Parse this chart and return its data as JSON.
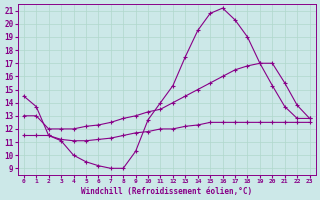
{
  "xlabel": "Windchill (Refroidissement éolien,°C)",
  "background_color": "#cce8e8",
  "grid_color": "#b0d8cc",
  "line_color": "#880088",
  "x_ticks": [
    0,
    1,
    2,
    3,
    4,
    5,
    6,
    7,
    8,
    9,
    10,
    11,
    12,
    13,
    14,
    15,
    16,
    17,
    18,
    19,
    20,
    21,
    22,
    23
  ],
  "y_ticks": [
    9,
    10,
    11,
    12,
    13,
    14,
    15,
    16,
    17,
    18,
    19,
    20,
    21
  ],
  "xlim": [
    -0.5,
    23.5
  ],
  "ylim": [
    8.5,
    21.5
  ],
  "curve1_x": [
    0,
    1,
    2,
    3,
    4,
    5,
    6,
    7,
    8,
    9,
    10,
    11,
    12,
    13,
    14,
    15,
    16,
    17,
    18,
    19,
    20,
    21,
    22,
    23
  ],
  "curve1_y": [
    14.5,
    13.7,
    11.5,
    11.1,
    10.0,
    9.5,
    9.2,
    9.0,
    9.0,
    10.3,
    12.7,
    14.0,
    15.3,
    17.5,
    19.5,
    20.8,
    21.2,
    20.3,
    19.0,
    17.0,
    15.3,
    13.7,
    12.8,
    12.8
  ],
  "curve2_x": [
    0,
    1,
    2,
    3,
    4,
    5,
    6,
    7,
    8,
    9,
    10,
    11,
    12,
    13,
    14,
    15,
    16,
    17,
    18,
    19,
    20,
    21,
    22,
    23
  ],
  "curve2_y": [
    13.0,
    13.0,
    12.0,
    12.0,
    12.0,
    12.2,
    12.3,
    12.5,
    12.8,
    13.0,
    13.3,
    13.5,
    14.0,
    14.5,
    15.0,
    15.5,
    16.0,
    16.5,
    16.8,
    17.0,
    17.0,
    15.5,
    13.8,
    12.8
  ],
  "curve3_x": [
    0,
    1,
    2,
    3,
    4,
    5,
    6,
    7,
    8,
    9,
    10,
    11,
    12,
    13,
    14,
    15,
    16,
    17,
    18,
    19,
    20,
    21,
    22,
    23
  ],
  "curve3_y": [
    11.5,
    11.5,
    11.5,
    11.2,
    11.1,
    11.1,
    11.2,
    11.3,
    11.5,
    11.7,
    11.8,
    12.0,
    12.0,
    12.2,
    12.3,
    12.5,
    12.5,
    12.5,
    12.5,
    12.5,
    12.5,
    12.5,
    12.5,
    12.5
  ]
}
